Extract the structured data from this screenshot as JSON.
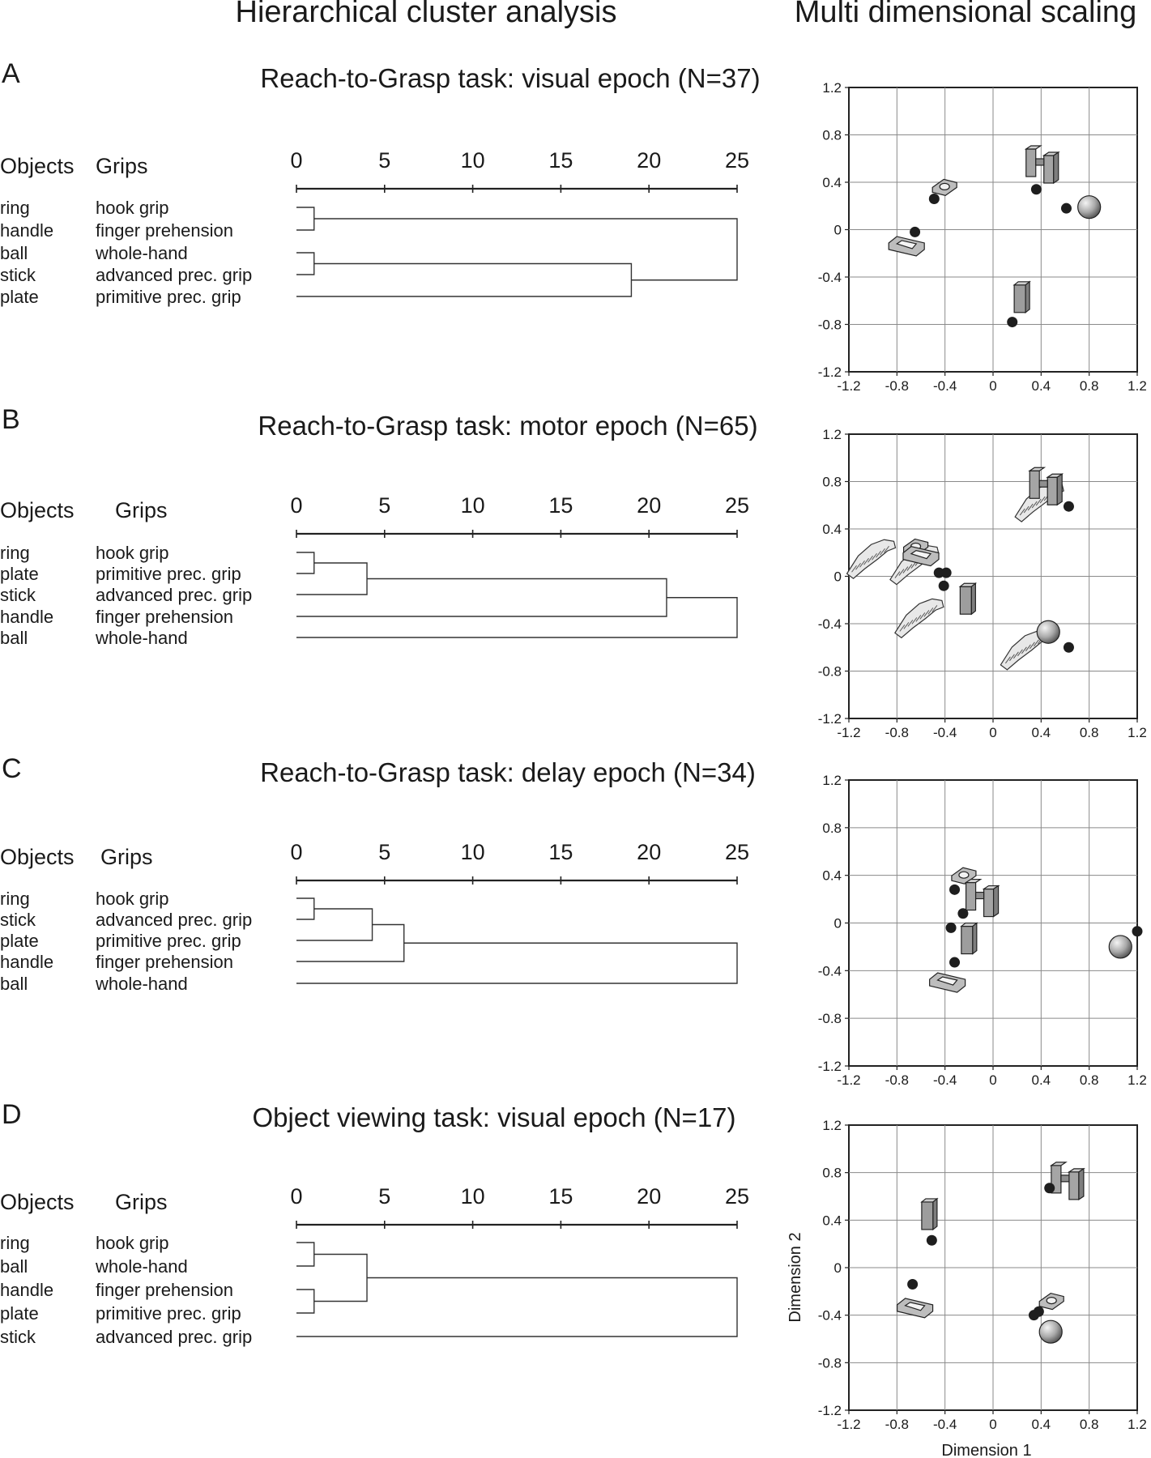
{
  "headers": {
    "left": "Hierarchical cluster analysis",
    "right": "Multi dimensional scaling"
  },
  "chart_data": [
    {
      "type": "dendrogram",
      "letter": "A",
      "title": "Reach-to-Grasp task: visual epoch (N=37)",
      "col_objects": "Objects",
      "col_grips": "Grips",
      "scale_ticks": [
        0,
        5,
        10,
        15,
        20,
        25
      ],
      "leaves": [
        {
          "object": "ring",
          "grip": "hook grip"
        },
        {
          "object": "handle",
          "grip": "finger prehension"
        },
        {
          "object": "ball",
          "grip": "whole-hand"
        },
        {
          "object": "stick",
          "grip": "advanced prec. grip"
        },
        {
          "object": "plate",
          "grip": "primitive prec. grip"
        }
      ],
      "merges": [
        {
          "a": 0,
          "b": 1,
          "height": 1
        },
        {
          "a": 2,
          "b": 3,
          "height": 1
        },
        {
          "a": 6,
          "b": 4,
          "height": 19
        },
        {
          "a": 5,
          "b": 7,
          "height": 25
        }
      ]
    },
    {
      "type": "scatter",
      "letter": "A",
      "xlim": [
        -1.2,
        1.2
      ],
      "ylim": [
        -1.2,
        1.2
      ],
      "xticks": [
        "-1.2",
        "-0.8",
        "-0.4",
        "0",
        "0.4",
        "0.8",
        "1.2"
      ],
      "yticks": [
        "1.2",
        "0.8",
        "0.4",
        "0",
        "-0.4",
        "-0.8",
        "-1.2"
      ],
      "xlabel": "",
      "ylabel": "",
      "grid": true,
      "points": [
        {
          "object": "ring",
          "x": -0.49,
          "y": 0.26
        },
        {
          "object": "plate",
          "x": -0.65,
          "y": -0.02
        },
        {
          "object": "handle",
          "x": 0.36,
          "y": 0.34
        },
        {
          "object": "ball",
          "x": 0.61,
          "y": 0.18
        },
        {
          "object": "stick",
          "x": 0.16,
          "y": -0.78
        }
      ]
    },
    {
      "type": "dendrogram",
      "letter": "B",
      "title": "Reach-to-Grasp task: motor epoch (N=65)",
      "col_objects": "Objects",
      "col_grips": "Grips",
      "scale_ticks": [
        0,
        5,
        10,
        15,
        20,
        25
      ],
      "leaves": [
        {
          "object": "ring",
          "grip": "hook grip"
        },
        {
          "object": "plate",
          "grip": "primitive prec. grip"
        },
        {
          "object": "stick",
          "grip": "advanced prec. grip"
        },
        {
          "object": "handle",
          "grip": "finger prehension"
        },
        {
          "object": "ball",
          "grip": "whole-hand"
        }
      ],
      "merges": [
        {
          "a": 0,
          "b": 1,
          "height": 1
        },
        {
          "a": 5,
          "b": 2,
          "height": 4
        },
        {
          "a": 6,
          "b": 3,
          "height": 21
        },
        {
          "a": 7,
          "b": 4,
          "height": 25
        }
      ]
    },
    {
      "type": "scatter",
      "letter": "B",
      "xlim": [
        -1.2,
        1.2
      ],
      "ylim": [
        -1.2,
        1.2
      ],
      "xticks": [
        "-1.2",
        "-0.8",
        "-0.4",
        "0",
        "0.4",
        "0.8",
        "1.2"
      ],
      "yticks": [
        "1.2",
        "0.8",
        "0.4",
        "0",
        "-0.4",
        "-0.8",
        "-1.2"
      ],
      "xlabel": "",
      "ylabel": "",
      "grid": true,
      "points": [
        {
          "object": "ring",
          "x": -0.45,
          "y": 0.03
        },
        {
          "object": "plate",
          "x": -0.39,
          "y": 0.03
        },
        {
          "object": "stick",
          "x": -0.41,
          "y": -0.08
        },
        {
          "object": "handle",
          "x": 0.63,
          "y": 0.59
        },
        {
          "object": "ball",
          "x": 0.63,
          "y": -0.6
        }
      ]
    },
    {
      "type": "dendrogram",
      "letter": "C",
      "title": "Reach-to-Grasp task: delay epoch (N=34)",
      "col_objects": "Objects",
      "col_grips": "Grips",
      "scale_ticks": [
        0,
        5,
        10,
        15,
        20,
        25
      ],
      "leaves": [
        {
          "object": "ring",
          "grip": "hook grip"
        },
        {
          "object": "stick",
          "grip": "advanced prec. grip"
        },
        {
          "object": "plate",
          "grip": "primitive prec. grip"
        },
        {
          "object": "handle",
          "grip": "finger prehension"
        },
        {
          "object": "ball",
          "grip": "whole-hand"
        }
      ],
      "merges": [
        {
          "a": 0,
          "b": 1,
          "height": 1
        },
        {
          "a": 5,
          "b": 2,
          "height": 4.3
        },
        {
          "a": 6,
          "b": 3,
          "height": 6.1
        },
        {
          "a": 7,
          "b": 4,
          "height": 25
        }
      ]
    },
    {
      "type": "scatter",
      "letter": "C",
      "xlim": [
        -1.2,
        1.2
      ],
      "ylim": [
        -1.2,
        1.2
      ],
      "xticks": [
        "-1.2",
        "-0.8",
        "-0.4",
        "0",
        "0.4",
        "0.8",
        "1.2"
      ],
      "yticks": [
        "1.2",
        "0.8",
        "0.4",
        "0",
        "-0.4",
        "-0.8",
        "-1.2"
      ],
      "xlabel": "",
      "ylabel": "",
      "grid": true,
      "points": [
        {
          "object": "ring",
          "x": -0.32,
          "y": 0.28
        },
        {
          "object": "handle",
          "x": -0.25,
          "y": 0.08
        },
        {
          "object": "stick",
          "x": -0.35,
          "y": -0.04
        },
        {
          "object": "plate",
          "x": -0.32,
          "y": -0.33
        },
        {
          "object": "ball",
          "x": 1.2,
          "y": -0.07
        }
      ]
    },
    {
      "type": "dendrogram",
      "letter": "D",
      "title": "Object viewing task: visual epoch (N=17)",
      "col_objects": "Objects",
      "col_grips": "Grips",
      "scale_ticks": [
        0,
        5,
        10,
        15,
        20,
        25
      ],
      "leaves": [
        {
          "object": "ring",
          "grip": "hook grip"
        },
        {
          "object": "ball",
          "grip": "whole-hand"
        },
        {
          "object": "handle",
          "grip": "finger prehension"
        },
        {
          "object": "plate",
          "grip": "primitive prec. grip"
        },
        {
          "object": "stick",
          "grip": "advanced prec. grip"
        }
      ],
      "merges": [
        {
          "a": 0,
          "b": 1,
          "height": 1
        },
        {
          "a": 2,
          "b": 3,
          "height": 1
        },
        {
          "a": 5,
          "b": 6,
          "height": 4
        },
        {
          "a": 7,
          "b": 4,
          "height": 25
        }
      ]
    },
    {
      "type": "scatter",
      "letter": "D",
      "xlim": [
        -1.2,
        1.2
      ],
      "ylim": [
        -1.2,
        1.2
      ],
      "xticks": [
        "-1.2",
        "-0.8",
        "-0.4",
        "0",
        "0.4",
        "0.8",
        "1.2"
      ],
      "yticks": [
        "1.2",
        "0.8",
        "0.4",
        "0",
        "-0.4",
        "-0.8",
        "-1.2"
      ],
      "xlabel": "Dimension 1",
      "ylabel": "Dimension 2",
      "grid": true,
      "points": [
        {
          "object": "stick",
          "x": -0.51,
          "y": 0.23
        },
        {
          "object": "plate",
          "x": -0.67,
          "y": -0.14
        },
        {
          "object": "handle",
          "x": 0.47,
          "y": 0.67
        },
        {
          "object": "ring",
          "x": 0.38,
          "y": -0.37
        },
        {
          "object": "ball",
          "x": 0.34,
          "y": -0.4
        }
      ]
    }
  ]
}
